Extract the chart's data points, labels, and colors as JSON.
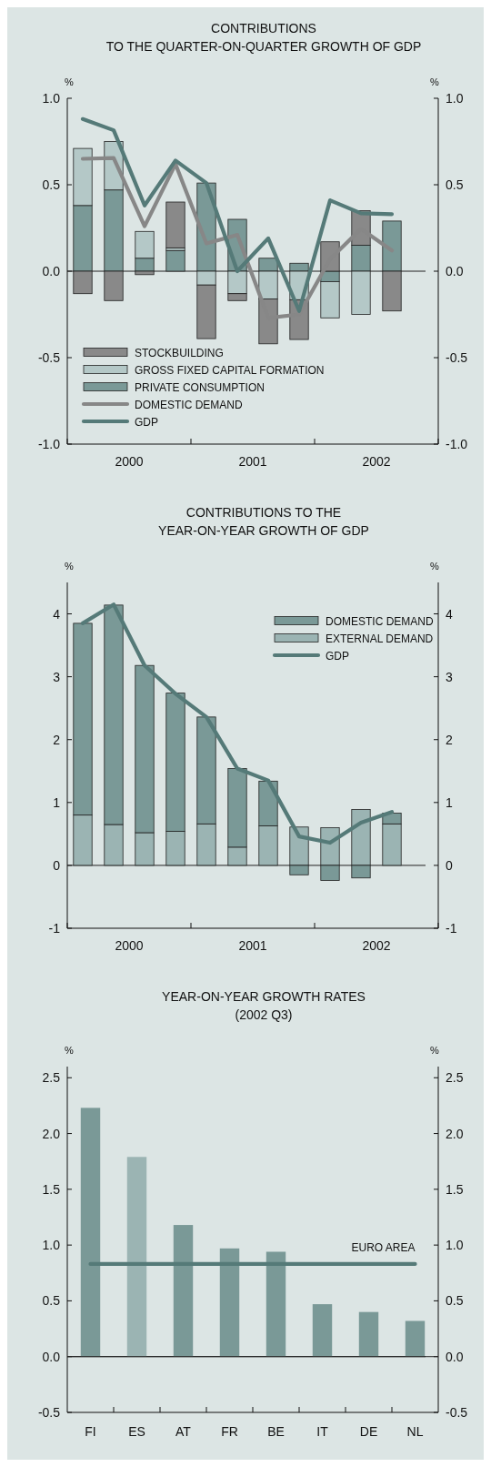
{
  "chart_data": [
    {
      "type": "bar",
      "title": "CONTRIBUTIONS\nTO THE QUARTER-ON-QUARTER GROWTH OF GDP",
      "ylabel": "%",
      "y2label": "%",
      "stacked": true,
      "legend": "bottom left",
      "x": [
        2000.125,
        2000.375,
        2000.625,
        2000.875,
        2001.125,
        2001.375,
        2001.625,
        2001.875,
        2002.125,
        2002.375,
        2002.625
      ],
      "xlim": [
        2000,
        2003
      ],
      "xticks": [
        {
          "value": 2000,
          "label": null
        },
        {
          "value": 2000.5,
          "label": "2000"
        },
        {
          "value": 2001,
          "label": null
        },
        {
          "value": 2001.5,
          "label": "2001"
        },
        {
          "value": 2002,
          "label": null
        },
        {
          "value": 2002.5,
          "label": "2002"
        },
        {
          "value": 2003,
          "label": null
        }
      ],
      "ylim": [
        -1,
        1
      ],
      "yticks": [
        {
          "value": -1,
          "label": "-1.0"
        },
        -0.5,
        {
          "value": 0,
          "label": "0.0"
        },
        0.5,
        {
          "value": 1,
          "label": "1.0"
        }
      ],
      "y2lim": [
        -1,
        1
      ],
      "y2ticks": [
        {
          "value": -1,
          "label": "-1.0"
        },
        -0.5,
        {
          "value": 0,
          "label": "0.0"
        },
        0.5,
        {
          "value": 1,
          "label": "1.0"
        }
      ],
      "series": [
        {
          "name": "PRIVATE CONSUMPTION",
          "color": "#7a9997",
          "values": [
            0.38,
            0.47,
            0.075,
            0.12,
            0.51,
            0.3,
            0.075,
            0.046,
            -0.06,
            0.15,
            0.29
          ]
        },
        {
          "name": "GROSS FIXED CAPITAL FORMATION",
          "color": "#b4c8c7",
          "values": [
            0.33,
            0.28,
            0.155,
            0.015,
            -0.08,
            -0.13,
            -0.16,
            -0.165,
            -0.21,
            -0.25,
            0
          ]
        },
        {
          "name": "STOCKBUILDING",
          "color": "#898989",
          "values": [
            -0.13,
            -0.17,
            -0.02,
            0.265,
            -0.31,
            -0.04,
            -0.26,
            -0.23,
            0.17,
            0.2,
            -0.23
          ]
        },
        {
          "name": "DOMESTIC DEMAND",
          "type": "line",
          "color": "#878787",
          "values": [
            0.65,
            0.655,
            0.26,
            0.62,
            0.16,
            0.21,
            -0.27,
            -0.25,
            0.07,
            0.245,
            0.12
          ]
        },
        {
          "name": "GDP",
          "type": "line",
          "color": "#557a78",
          "values": [
            0.88,
            0.815,
            0.38,
            0.64,
            0.51,
            0.0,
            0.19,
            -0.23,
            0.41,
            0.335,
            0.33
          ]
        }
      ]
    },
    {
      "type": "bar",
      "title": "CONTRIBUTIONS TO THE\nYEAR-ON-YEAR GROWTH OF GDP",
      "ylabel": "%",
      "y2label": "%",
      "stacked": true,
      "legend": "top right",
      "x": [
        2000.125,
        2000.375,
        2000.625,
        2000.875,
        2001.125,
        2001.375,
        2001.625,
        2001.875,
        2002.125,
        2002.375,
        2002.625
      ],
      "xlim": [
        2000,
        2003
      ],
      "xticks": [
        {
          "value": 2000,
          "label": null
        },
        {
          "value": 2000.5,
          "label": "2000"
        },
        {
          "value": 2001,
          "label": null
        },
        {
          "value": 2001.5,
          "label": "2001"
        },
        {
          "value": 2002,
          "label": null
        },
        {
          "value": 2002.5,
          "label": "2002"
        },
        {
          "value": 2003,
          "label": null
        }
      ],
      "ylim": [
        -1,
        4.5
      ],
      "yticks": [
        -1,
        0,
        1,
        2,
        3,
        4
      ],
      "y2lim": [
        -1,
        4.5
      ],
      "y2ticks": [
        -1,
        0,
        1,
        2,
        3,
        4
      ],
      "series": [
        {
          "name": "EXTERNAL DEMAND",
          "color": "#9bb4b3",
          "values": [
            0.8,
            0.65,
            0.52,
            0.54,
            0.66,
            0.29,
            0.63,
            0.61,
            0.6,
            0.89,
            0.66
          ]
        },
        {
          "name": "DOMESTIC DEMAND",
          "color": "#7a9997",
          "values": [
            3.05,
            3.49,
            2.66,
            2.2,
            1.7,
            1.25,
            0.71,
            -0.15,
            -0.24,
            -0.2,
            0.17
          ]
        },
        {
          "name": "GDP",
          "type": "line",
          "color": "#557a78",
          "values": [
            3.85,
            4.15,
            3.18,
            2.73,
            2.36,
            1.54,
            1.35,
            0.46,
            0.36,
            0.68,
            0.85
          ]
        }
      ]
    },
    {
      "type": "bar",
      "title": "YEAR-ON-YEAR GROWTH RATES",
      "subtitle": "(2002 Q3)",
      "ylabel": "%",
      "y2label": "%",
      "categories": [
        "FI",
        "ES",
        "AT",
        "FR",
        "BE",
        "IT",
        "DE",
        "NL"
      ],
      "series": [
        {
          "values": [
            2.23,
            1.79,
            1.18,
            0.97,
            0.94,
            0.47,
            0.4,
            0.32
          ],
          "colors": [
            "#7a9997",
            "#9bb4b3",
            "#7a9997",
            "#7a9997",
            "#7a9997",
            "#7a9997",
            "#7a9997",
            "#7a9997"
          ]
        },
        {
          "name": "EURO AREA",
          "type": "line",
          "color": "#557a78",
          "values": [
            0.83,
            0.83,
            0.83,
            0.83,
            0.83,
            0.83,
            0.83,
            0.83
          ]
        }
      ],
      "ylim": [
        -0.5,
        2.6
      ],
      "yticks": [
        {
          "value": -0.5,
          "label": "-0.5"
        },
        {
          "value": 0,
          "label": "0.0"
        },
        0.5,
        {
          "value": 1,
          "label": "1.0"
        },
        1.5,
        {
          "value": 2,
          "label": "2.0"
        },
        2.5
      ],
      "y2lim": [
        -0.5,
        2.6
      ],
      "y2ticks": [
        {
          "value": -0.5,
          "label": "-0.5"
        },
        {
          "value": 0,
          "label": "0.0"
        },
        0.5,
        {
          "value": 1,
          "label": "1.0"
        },
        1.5,
        {
          "value": 2,
          "label": "2.0"
        },
        2.5
      ]
    }
  ]
}
